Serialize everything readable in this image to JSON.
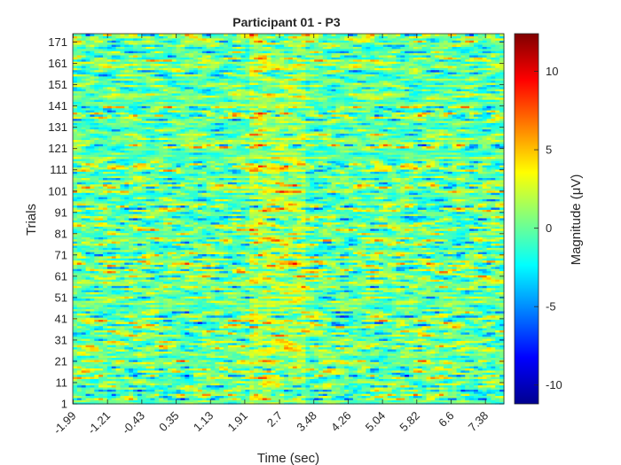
{
  "chart_data": {
    "type": "heatmap",
    "title": "Participant 01 - P3",
    "xlabel": "Time (sec)",
    "ylabel": "Trials",
    "xlim": [
      -2.0,
      7.8
    ],
    "ylim": [
      1,
      175
    ],
    "x_ticks": [
      "-1.99",
      "-1.21",
      "-0.43",
      "0.35",
      "1.13",
      "1.91",
      "2.7",
      "3.48",
      "4.26",
      "5.04",
      "5.82",
      "6.6",
      "7.38"
    ],
    "y_ticks": [
      "1",
      "11",
      "21",
      "31",
      "41",
      "51",
      "61",
      "71",
      "81",
      "91",
      "101",
      "111",
      "121",
      "131",
      "141",
      "151",
      "161",
      "171"
    ],
    "colorbar": {
      "label": "Magnitude (μV)",
      "range": [
        -11.2,
        12.4
      ],
      "ticks": [
        "10",
        "5",
        "0",
        "-5",
        "-10"
      ],
      "colormap": "jet"
    },
    "grid": false,
    "rows": 175,
    "x_sample_count": 100,
    "highlight_band": {
      "time_range": [
        2.0,
        3.3
      ],
      "mean_shift_uV": 1.5
    }
  }
}
